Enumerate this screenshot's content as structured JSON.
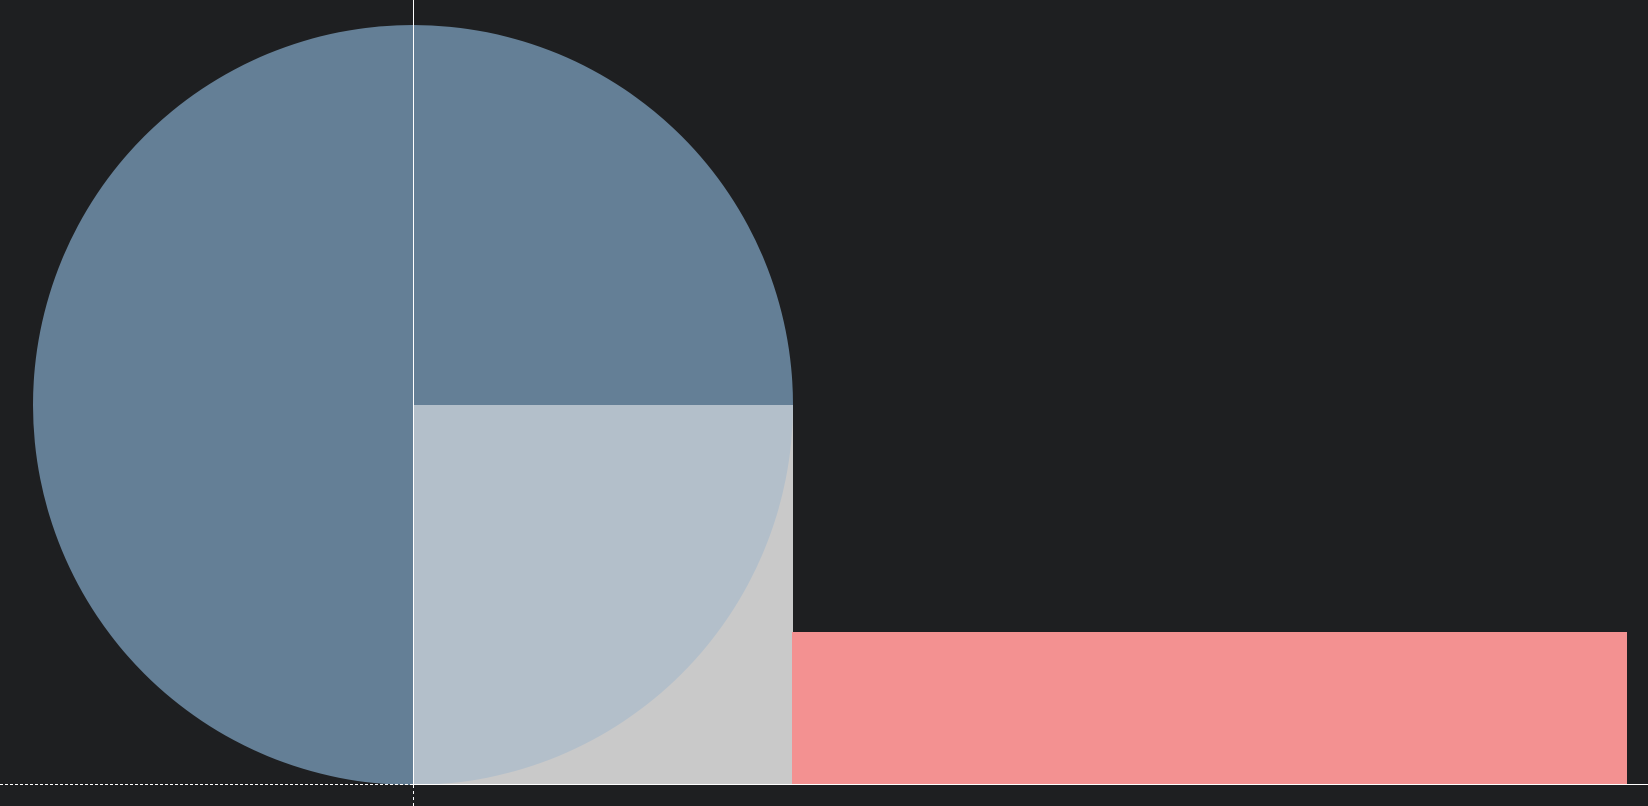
{
  "colors": {
    "background": "#1e1f21",
    "circle_dark": "#647f96",
    "circle_light_quadrant": "#b3bfca",
    "square": "#c9c9c9",
    "rectangle": "#f39191",
    "guide_lines": "#ffffff"
  }
}
